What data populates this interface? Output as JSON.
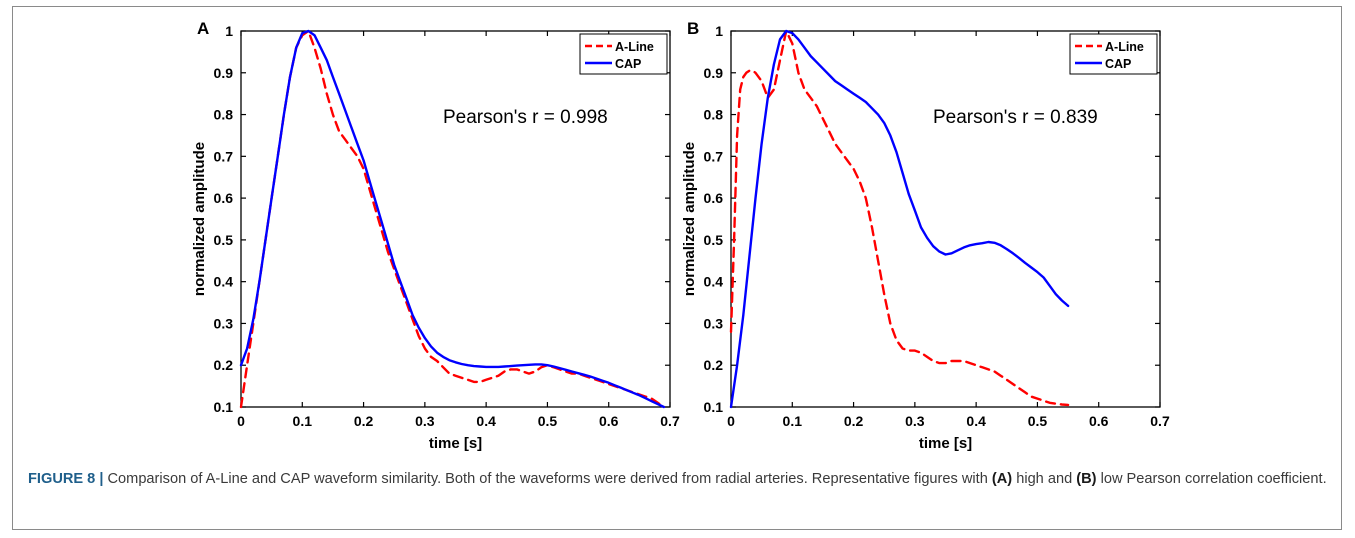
{
  "chart_data": [
    {
      "panel_label": "A",
      "type": "line",
      "xlabel": "time [s]",
      "ylabel": "normalized amplitude",
      "xlim": [
        0,
        0.7
      ],
      "ylim": [
        0.1,
        1
      ],
      "xticks": [
        "0",
        "0.1",
        "0.2",
        "0.3",
        "0.4",
        "0.5",
        "0.6",
        "0.7"
      ],
      "yticks": [
        "0.1",
        "0.2",
        "0.3",
        "0.4",
        "0.5",
        "0.6",
        "0.7",
        "0.8",
        "0.9",
        "1"
      ],
      "legend_position": "top-right",
      "annotation": "Pearson's r = 0.998",
      "series": [
        {
          "name": "A-Line",
          "color": "#ff0000",
          "dash": "dashed",
          "x": [
            0,
            0.01,
            0.02,
            0.03,
            0.04,
            0.05,
            0.06,
            0.07,
            0.08,
            0.09,
            0.1,
            0.11,
            0.12,
            0.13,
            0.14,
            0.15,
            0.16,
            0.17,
            0.18,
            0.19,
            0.2,
            0.21,
            0.22,
            0.23,
            0.24,
            0.25,
            0.26,
            0.27,
            0.28,
            0.29,
            0.3,
            0.31,
            0.32,
            0.33,
            0.34,
            0.35,
            0.36,
            0.37,
            0.38,
            0.39,
            0.4,
            0.41,
            0.42,
            0.43,
            0.44,
            0.45,
            0.46,
            0.47,
            0.48,
            0.49,
            0.5,
            0.51,
            0.52,
            0.53,
            0.54,
            0.55,
            0.56,
            0.57,
            0.58,
            0.59,
            0.6,
            0.61,
            0.62,
            0.63,
            0.64,
            0.65,
            0.66,
            0.67,
            0.68,
            0.69
          ],
          "y": [
            0.1,
            0.2,
            0.3,
            0.4,
            0.5,
            0.6,
            0.7,
            0.8,
            0.89,
            0.96,
            0.99,
            1.0,
            0.96,
            0.91,
            0.85,
            0.8,
            0.76,
            0.74,
            0.72,
            0.7,
            0.67,
            0.62,
            0.57,
            0.52,
            0.47,
            0.43,
            0.39,
            0.35,
            0.31,
            0.27,
            0.24,
            0.22,
            0.21,
            0.195,
            0.18,
            0.175,
            0.17,
            0.165,
            0.16,
            0.16,
            0.165,
            0.17,
            0.175,
            0.185,
            0.19,
            0.19,
            0.185,
            0.18,
            0.185,
            0.195,
            0.2,
            0.195,
            0.19,
            0.185,
            0.18,
            0.18,
            0.175,
            0.17,
            0.165,
            0.16,
            0.155,
            0.15,
            0.145,
            0.14,
            0.135,
            0.13,
            0.125,
            0.12,
            0.11,
            0.1
          ]
        },
        {
          "name": "CAP",
          "color": "#0000ff",
          "dash": "solid",
          "x": [
            0,
            0.01,
            0.02,
            0.03,
            0.04,
            0.05,
            0.06,
            0.07,
            0.08,
            0.09,
            0.1,
            0.11,
            0.12,
            0.13,
            0.14,
            0.15,
            0.16,
            0.17,
            0.18,
            0.19,
            0.2,
            0.21,
            0.22,
            0.23,
            0.24,
            0.25,
            0.26,
            0.27,
            0.28,
            0.29,
            0.3,
            0.31,
            0.32,
            0.33,
            0.34,
            0.35,
            0.36,
            0.37,
            0.38,
            0.39,
            0.4,
            0.41,
            0.42,
            0.43,
            0.44,
            0.45,
            0.46,
            0.47,
            0.48,
            0.49,
            0.5,
            0.51,
            0.52,
            0.53,
            0.54,
            0.55,
            0.56,
            0.57,
            0.58,
            0.59,
            0.6,
            0.61,
            0.62,
            0.63,
            0.64,
            0.65,
            0.66,
            0.67,
            0.68,
            0.69
          ],
          "y": [
            0.2,
            0.24,
            0.31,
            0.4,
            0.5,
            0.6,
            0.7,
            0.8,
            0.89,
            0.96,
            0.995,
            1.0,
            0.99,
            0.96,
            0.93,
            0.89,
            0.85,
            0.81,
            0.77,
            0.73,
            0.69,
            0.64,
            0.59,
            0.54,
            0.49,
            0.44,
            0.4,
            0.36,
            0.32,
            0.29,
            0.265,
            0.245,
            0.23,
            0.22,
            0.212,
            0.207,
            0.203,
            0.2,
            0.198,
            0.197,
            0.196,
            0.196,
            0.196,
            0.197,
            0.198,
            0.199,
            0.2,
            0.201,
            0.202,
            0.202,
            0.2,
            0.197,
            0.193,
            0.189,
            0.185,
            0.181,
            0.177,
            0.173,
            0.168,
            0.163,
            0.158,
            0.152,
            0.146,
            0.14,
            0.134,
            0.128,
            0.121,
            0.114,
            0.107,
            0.1
          ]
        }
      ]
    },
    {
      "panel_label": "B",
      "type": "line",
      "xlabel": "time [s]",
      "ylabel": "normalized amplitude",
      "xlim": [
        0,
        0.7
      ],
      "ylim": [
        0.1,
        1
      ],
      "xticks": [
        "0",
        "0.1",
        "0.2",
        "0.3",
        "0.4",
        "0.5",
        "0.6",
        "0.7"
      ],
      "yticks": [
        "0.1",
        "0.2",
        "0.3",
        "0.4",
        "0.5",
        "0.6",
        "0.7",
        "0.8",
        "0.9",
        "1"
      ],
      "legend_position": "top-right",
      "annotation": "Pearson's r = 0.839",
      "series": [
        {
          "name": "A-Line",
          "color": "#ff0000",
          "dash": "dashed",
          "x": [
            0,
            0.005,
            0.01,
            0.015,
            0.02,
            0.025,
            0.03,
            0.035,
            0.04,
            0.05,
            0.06,
            0.07,
            0.08,
            0.09,
            0.1,
            0.11,
            0.12,
            0.13,
            0.14,
            0.15,
            0.16,
            0.17,
            0.18,
            0.19,
            0.2,
            0.21,
            0.22,
            0.23,
            0.24,
            0.25,
            0.26,
            0.27,
            0.28,
            0.29,
            0.3,
            0.31,
            0.32,
            0.33,
            0.34,
            0.35,
            0.36,
            0.37,
            0.38,
            0.39,
            0.4,
            0.41,
            0.42,
            0.43,
            0.44,
            0.45,
            0.46,
            0.47,
            0.48,
            0.49,
            0.5,
            0.51,
            0.52,
            0.53,
            0.54,
            0.55
          ],
          "y": [
            0.28,
            0.5,
            0.75,
            0.86,
            0.89,
            0.9,
            0.905,
            0.905,
            0.9,
            0.88,
            0.84,
            0.86,
            0.93,
            1.0,
            0.97,
            0.9,
            0.86,
            0.84,
            0.82,
            0.79,
            0.76,
            0.73,
            0.71,
            0.69,
            0.67,
            0.64,
            0.6,
            0.53,
            0.45,
            0.37,
            0.3,
            0.26,
            0.24,
            0.235,
            0.235,
            0.23,
            0.22,
            0.21,
            0.205,
            0.205,
            0.21,
            0.21,
            0.21,
            0.205,
            0.2,
            0.195,
            0.19,
            0.185,
            0.175,
            0.165,
            0.155,
            0.145,
            0.135,
            0.125,
            0.12,
            0.115,
            0.11,
            0.108,
            0.106,
            0.105
          ]
        },
        {
          "name": "CAP",
          "color": "#0000ff",
          "dash": "solid",
          "x": [
            0,
            0.01,
            0.02,
            0.03,
            0.04,
            0.05,
            0.06,
            0.07,
            0.08,
            0.09,
            0.1,
            0.11,
            0.12,
            0.13,
            0.14,
            0.15,
            0.16,
            0.17,
            0.18,
            0.19,
            0.2,
            0.21,
            0.22,
            0.23,
            0.24,
            0.25,
            0.26,
            0.27,
            0.28,
            0.29,
            0.3,
            0.31,
            0.32,
            0.33,
            0.34,
            0.35,
            0.36,
            0.37,
            0.38,
            0.39,
            0.4,
            0.41,
            0.42,
            0.43,
            0.44,
            0.45,
            0.46,
            0.47,
            0.48,
            0.49,
            0.5,
            0.51,
            0.52,
            0.53,
            0.54,
            0.55
          ],
          "y": [
            0.1,
            0.2,
            0.32,
            0.46,
            0.6,
            0.73,
            0.84,
            0.92,
            0.98,
            1.0,
            0.995,
            0.98,
            0.96,
            0.94,
            0.925,
            0.91,
            0.895,
            0.88,
            0.87,
            0.86,
            0.85,
            0.84,
            0.83,
            0.815,
            0.8,
            0.78,
            0.75,
            0.71,
            0.66,
            0.61,
            0.57,
            0.53,
            0.505,
            0.485,
            0.472,
            0.465,
            0.468,
            0.475,
            0.482,
            0.487,
            0.49,
            0.492,
            0.495,
            0.493,
            0.487,
            0.478,
            0.468,
            0.457,
            0.445,
            0.434,
            0.423,
            0.41,
            0.39,
            0.37,
            0.355,
            0.342
          ]
        }
      ]
    }
  ],
  "caption": {
    "figure_label": "FIGURE 8 |",
    "text_1": " Comparison of A-Line and CAP waveform similarity. Both of the waveforms were derived from radial arteries. Representative figures with ",
    "bold_a": "(A)",
    "text_2": " high and ",
    "bold_b": "(B)",
    "text_3": " low Pearson correlation coefficient."
  }
}
